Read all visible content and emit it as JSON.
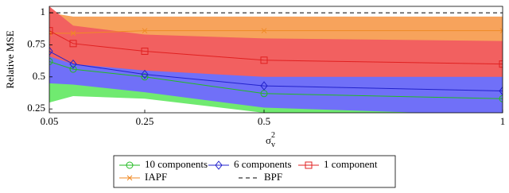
{
  "chart_data": {
    "type": "line",
    "ylabel": "Relative MSE",
    "xlabel": {
      "base": "σ",
      "sub": "v",
      "sup": "2"
    },
    "x": [
      0.05,
      0.1,
      0.25,
      0.5,
      1
    ],
    "xlim": [
      0.05,
      1
    ],
    "xticks": [
      0.05,
      0.25,
      0.5,
      1
    ],
    "ylim": [
      0.22,
      1.05
    ],
    "yticks": [
      0.25,
      0.5,
      0.75,
      1
    ],
    "series": [
      {
        "name": "IAPF",
        "color": "#f08a24",
        "marker": "x",
        "band_color": "#f7a35c",
        "values": [
          0.84,
          0.84,
          0.86,
          0.86,
          0.86
        ],
        "band_lower": [
          0.55,
          0.65,
          0.7,
          0.72,
          0.74
        ],
        "band_upper": [
          1.0,
          0.97,
          0.97,
          0.97,
          0.97
        ]
      },
      {
        "name": "1 component",
        "color": "#e02020",
        "marker": "square",
        "band_color": "#f26060",
        "values": [
          0.86,
          0.76,
          0.7,
          0.63,
          0.6
        ],
        "band_lower": [
          0.5,
          0.48,
          0.47,
          0.46,
          0.45
        ],
        "band_upper": [
          1.05,
          0.9,
          0.83,
          0.8,
          0.78
        ]
      },
      {
        "name": "10 components",
        "color": "#22bb22",
        "marker": "circle",
        "band_color": "#70ea70",
        "values": [
          0.62,
          0.56,
          0.5,
          0.37,
          0.33
        ],
        "band_lower": [
          0.3,
          0.35,
          0.33,
          0.22,
          0.15
        ],
        "band_upper": [
          0.62,
          0.57,
          0.51,
          0.4,
          0.37
        ]
      },
      {
        "name": "6 components",
        "color": "#2222cc",
        "marker": "diamond",
        "band_color": "#7070f8",
        "values": [
          0.7,
          0.6,
          0.52,
          0.43,
          0.39
        ],
        "band_lower": [
          0.45,
          0.44,
          0.38,
          0.26,
          0.2
        ],
        "band_upper": [
          0.66,
          0.6,
          0.55,
          0.5,
          0.5
        ]
      },
      {
        "name": "BPF",
        "color": "#000000",
        "marker": "none",
        "dash": "5,4",
        "values": [
          1,
          1,
          1,
          1,
          1
        ]
      }
    ],
    "legend_order": [
      2,
      3,
      1,
      0,
      4
    ]
  }
}
